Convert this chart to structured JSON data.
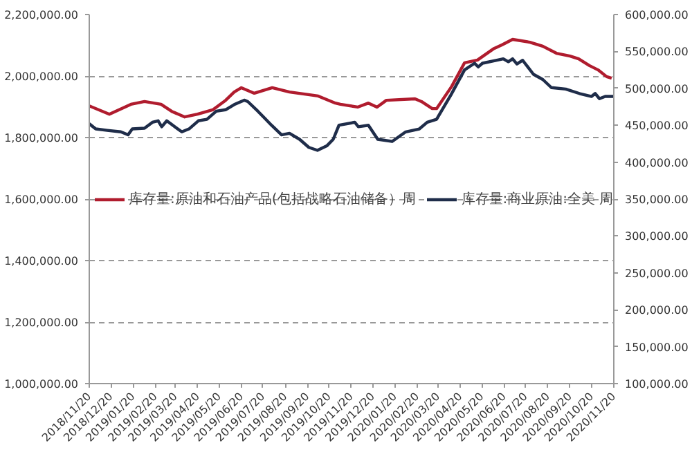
{
  "chart_data": {
    "type": "line",
    "xlim": [
      "2018-11-20",
      "2020-11-20"
    ],
    "xticks": [
      {
        "value": "2018-11-20",
        "label": "2018/11/20"
      },
      {
        "value": "2018-12-20",
        "label": "2018/12/20"
      },
      {
        "value": "2019-01-20",
        "label": "2019/01/20"
      },
      {
        "value": "2019-02-20",
        "label": "2019/02/20"
      },
      {
        "value": "2019-03-20",
        "label": "2019/03/20"
      },
      {
        "value": "2019-04-20",
        "label": "2019/04/20"
      },
      {
        "value": "2019-05-20",
        "label": "2019/05/20"
      },
      {
        "value": "2019-06-20",
        "label": "2019/06/20"
      },
      {
        "value": "2019-07-20",
        "label": "2019/07/20"
      },
      {
        "value": "2019-08-20",
        "label": "2019/08/20"
      },
      {
        "value": "2019-09-20",
        "label": "2019/09/20"
      },
      {
        "value": "2019-10-20",
        "label": "2019/10/20"
      },
      {
        "value": "2019-11-20",
        "label": "2019/11/20"
      },
      {
        "value": "2019-12-20",
        "label": "2019/12/20"
      },
      {
        "value": "2020-01-20",
        "label": "2020/01/20"
      },
      {
        "value": "2020-02-20",
        "label": "2020/02/20"
      },
      {
        "value": "2020-03-20",
        "label": "2020/03/20"
      },
      {
        "value": "2020-04-20",
        "label": "2020/04/20"
      },
      {
        "value": "2020-05-20",
        "label": "2020/05/20"
      },
      {
        "value": "2020-06-20",
        "label": "2020/06/20"
      },
      {
        "value": "2020-07-20",
        "label": "2020/07/20"
      },
      {
        "value": "2020-08-20",
        "label": "2020/08/20"
      },
      {
        "value": "2020-09-20",
        "label": "2020/09/20"
      },
      {
        "value": "2020-10-20",
        "label": "2020/10/20"
      },
      {
        "value": "2020-11-20",
        "label": "2020/11/20"
      }
    ],
    "ylim": [
      1000000,
      2200000
    ],
    "yticks": [
      {
        "value": 1000000,
        "label": "1,000,000.00"
      },
      {
        "value": 1200000,
        "label": "1,200,000.00"
      },
      {
        "value": 1400000,
        "label": "1,400,000.00"
      },
      {
        "value": 1600000,
        "label": "1,600,000.00"
      },
      {
        "value": 1800000,
        "label": "1,800,000.00"
      },
      {
        "value": 2000000,
        "label": "2,000,000.00"
      },
      {
        "value": 2200000,
        "label": "2,200,000.00"
      }
    ],
    "y2lim": [
      100000,
      600000
    ],
    "y2ticks": [
      {
        "value": 100000,
        "label": "100,000.00"
      },
      {
        "value": 150000,
        "label": "150,000.00"
      },
      {
        "value": 200000,
        "label": "200,000.00"
      },
      {
        "value": 250000,
        "label": "250,000.00"
      },
      {
        "value": 300000,
        "label": "300,000.00"
      },
      {
        "value": 350000,
        "label": "350,000.00"
      },
      {
        "value": 400000,
        "label": "400,000.00"
      },
      {
        "value": 450000,
        "label": "450,000.00"
      },
      {
        "value": 500000,
        "label": "500,000.00"
      },
      {
        "value": 550000,
        "label": "550,000.00"
      },
      {
        "value": 600000,
        "label": "600,000.00"
      }
    ],
    "grid": "y",
    "legend": "left",
    "marker": "none",
    "line_style": "solid",
    "series": [
      {
        "name": "库存量:原油和石油产品(包括战略石油储备）周",
        "color": "#b01c2e",
        "x": [
          "2018-11-20",
          "2018-12-18",
          "2019-01-17",
          "2019-02-05",
          "2019-02-28",
          "2019-03-15",
          "2019-04-02",
          "2019-04-20",
          "2019-05-11",
          "2019-05-29",
          "2019-06-10",
          "2019-06-20",
          "2019-07-08",
          "2019-08-02",
          "2019-08-26",
          "2019-09-23",
          "2019-10-05",
          "2019-10-29",
          "2019-11-05",
          "2019-11-29",
          "2019-12-14",
          "2019-12-26",
          "2020-01-08",
          "2020-02-17",
          "2020-02-26",
          "2020-03-12",
          "2020-03-18",
          "2020-04-08",
          "2020-04-26",
          "2020-05-14",
          "2020-06-05",
          "2020-06-17",
          "2020-07-02",
          "2020-07-26",
          "2020-08-13",
          "2020-09-01",
          "2020-09-20",
          "2020-10-02",
          "2020-10-17",
          "2020-10-29",
          "2020-11-10",
          "2020-11-17"
        ],
        "values": [
          1903000,
          1876000,
          1908000,
          1917000,
          1908000,
          1885000,
          1867000,
          1876000,
          1890000,
          1921000,
          1948000,
          1962000,
          1944000,
          1962000,
          1948000,
          1939000,
          1935000,
          1912000,
          1908000,
          1899000,
          1912000,
          1899000,
          1921000,
          1926000,
          1917000,
          1894000,
          1894000,
          1966000,
          2043000,
          2052000,
          2088000,
          2101000,
          2119000,
          2110000,
          2097000,
          2074000,
          2065000,
          2056000,
          2034000,
          2020000,
          1998000,
          1993000
        ]
      },
      {
        "name": "库存量:商业原油:全美 周",
        "color": "#1f2d4a",
        "axis": "y2",
        "x": [
          "2018-11-20",
          "2018-11-29",
          "2018-12-15",
          "2019-01-03",
          "2019-01-13",
          "2019-01-19",
          "2019-02-05",
          "2019-02-16",
          "2019-02-24",
          "2019-03-01",
          "2019-03-08",
          "2019-03-19",
          "2019-03-29",
          "2019-04-08",
          "2019-04-21",
          "2019-05-03",
          "2019-05-16",
          "2019-05-29",
          "2019-06-10",
          "2019-06-24",
          "2019-06-29",
          "2019-07-13",
          "2019-07-22",
          "2019-08-01",
          "2019-08-15",
          "2019-08-26",
          "2019-09-09",
          "2019-09-22",
          "2019-10-04",
          "2019-10-17",
          "2019-10-26",
          "2019-11-03",
          "2019-11-25",
          "2019-11-30",
          "2019-12-14",
          "2019-12-27",
          "2020-01-16",
          "2020-02-04",
          "2020-02-23",
          "2020-03-05",
          "2020-03-18",
          "2020-04-07",
          "2020-04-26",
          "2020-05-10",
          "2020-05-15",
          "2020-05-21",
          "2020-06-10",
          "2020-06-19",
          "2020-06-26",
          "2020-07-02",
          "2020-07-08",
          "2020-07-16",
          "2020-07-31",
          "2020-08-13",
          "2020-08-25",
          "2020-09-14",
          "2020-10-03",
          "2020-10-20",
          "2020-10-25",
          "2020-10-31",
          "2020-11-08",
          "2020-11-20"
        ],
        "values": [
          452000,
          445000,
          443000,
          441000,
          437000,
          445000,
          446000,
          454000,
          456000,
          448000,
          456000,
          448000,
          441000,
          445000,
          456000,
          458000,
          469000,
          471000,
          478000,
          484000,
          482000,
          469000,
          460000,
          450000,
          437000,
          439000,
          431000,
          420000,
          416000,
          422000,
          431000,
          450000,
          454000,
          448000,
          450000,
          431000,
          428000,
          441000,
          445000,
          454000,
          458000,
          491000,
          525000,
          534000,
          529000,
          534000,
          538000,
          540000,
          536000,
          540000,
          533000,
          538000,
          519000,
          512000,
          501000,
          499000,
          493000,
          489000,
          493000,
          486000,
          489000,
          489000
        ]
      }
    ]
  }
}
